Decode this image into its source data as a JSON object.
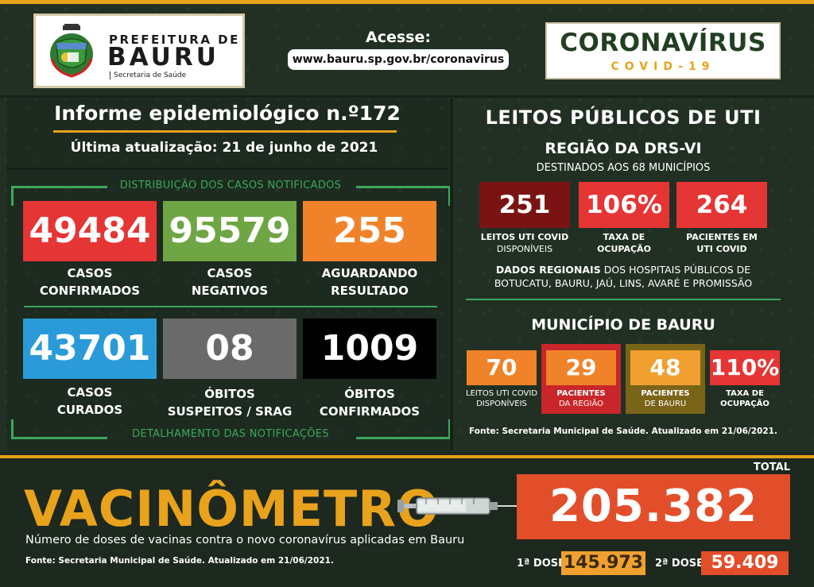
{
  "header": {
    "logo": {
      "line1": "PREFEITURA DE",
      "line2": "BAURU",
      "line3": "Secretaria de Saúde"
    },
    "access_label": "Acesse:",
    "access_url": "www.bauru.sp.gov.br/coronavirus",
    "covid_title": "CORONAVÍRUS",
    "covid_sub": "COVID-19"
  },
  "informe": {
    "title": "Informe epidemiológico n.º172",
    "updated": "Última atualização: 21 de junho de 2021"
  },
  "distribution": {
    "title": "DISTRIBUIÇÃO DOS CASOS NOTIFICADOS",
    "footer": "DETALHAMENTO DAS NOTIFICAÇÕES",
    "stats": [
      {
        "value": "49484",
        "line1": "CASOS",
        "line2": "CONFIRMADOS",
        "color": "#e53535"
      },
      {
        "value": "95579",
        "line1": "CASOS",
        "line2": "NEGATIVOS",
        "color": "#6fa545"
      },
      {
        "value": "255",
        "line1": "AGUARDANDO",
        "line2": "RESULTADO",
        "color": "#f0832a"
      },
      {
        "value": "43701",
        "line1": "CASOS",
        "line2": "CURADOS",
        "color": "#2a9bd8"
      },
      {
        "value": "08",
        "line1": "ÓBITOS",
        "line2": "SUSPEITOS / SRAG",
        "color": "#6a6a6a"
      },
      {
        "value": "1009",
        "line1": "ÓBITOS",
        "line2": "CONFIRMADOS",
        "color": "#000000"
      }
    ]
  },
  "icu": {
    "title": "LEITOS PÚBLICOS DE UTI",
    "region_title": "REGIÃO DA DRS-VI",
    "region_sub": "DESTINADOS AOS 68 MUNICÍPIOS",
    "region_stats": [
      {
        "value": "251",
        "line1": "LEITOS UTI COVID",
        "line2": "DISPONÍVEIS",
        "color": "#7a1414"
      },
      {
        "value": "106%",
        "line1": "TAXA DE",
        "line2": "OCUPAÇÃO",
        "color": "#e53535"
      },
      {
        "value": "264",
        "line1": "PACIENTES EM",
        "line2": "UTI COVID",
        "color": "#e53535"
      }
    ],
    "dados_bold": "DADOS REGIONAIS",
    "dados_rest": " DOS HOSPITAIS PÚBLICOS DE",
    "dados_line2": "BOTUCATU, BAURU, JAÚ, LINS, AVARÉ E PROMISSÃO",
    "municipio_title": "MUNICÍPIO DE BAURU",
    "municipio_stats": [
      {
        "value": "70",
        "line1": "LEITOS UTI COVID",
        "line2": "DISPONÍVEIS",
        "color": "#f0832a"
      },
      {
        "value": "29",
        "line1": "PACIENTES",
        "line2": "DA REGIÃO",
        "color": "#f0832a"
      },
      {
        "value": "48",
        "line1": "PACIENTES",
        "line2": "DE BAURU",
        "color": "#f0a030"
      },
      {
        "value": "110%",
        "line1": "TAXA DE",
        "line2": "OCUPAÇÃO",
        "color": "#e53535"
      }
    ],
    "fonte": "Fonte: Secretaria Municipal de Saúde. Atualizado em 21/06/2021."
  },
  "vaccine": {
    "title": "VACINÔMETRO",
    "description": "Número de doses de vacinas contra o novo coronavírus aplicadas em Bauru",
    "fonte": "Fonte: Secretaria Municipal de Saúde. Atualizado em 21/06/2021.",
    "total_label": "TOTAL",
    "total": "205.382",
    "dose1_label": "1ª DOSE",
    "dose1": "145.973",
    "dose2_label": "2ª DOSE",
    "dose2": "59.409"
  }
}
